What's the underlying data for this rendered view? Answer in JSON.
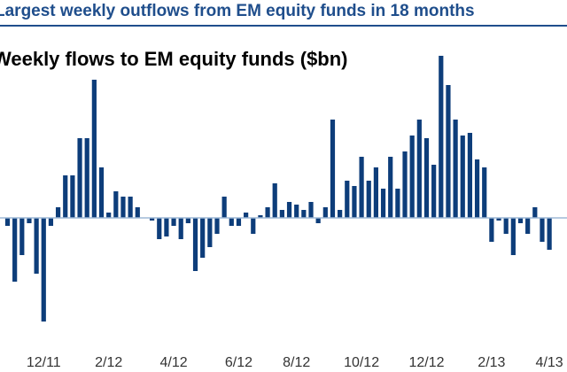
{
  "header": {
    "title": "Largest weekly outflows from EM equity funds in 18 months",
    "subtitle": "Weekly flows to EM equity funds ($bn)"
  },
  "chart_data": {
    "type": "bar",
    "title": "Weekly flows to EM equity funds ($bn)",
    "xlabel": "",
    "ylabel": "",
    "ylim": [
      -2.0,
      3.0
    ],
    "grid": false,
    "legend": "none",
    "bar_color": "#0d3d7a",
    "zero_line_color": "#9db8d6",
    "x_tick_labels": [
      "12/11",
      "2/12",
      "4/12",
      "6/12",
      "8/12",
      "10/12",
      "12/12",
      "2/13",
      "4/13"
    ],
    "tick_week_index": [
      5,
      14,
      23,
      32,
      40,
      49,
      58,
      67,
      75
    ],
    "values": [
      -0.15,
      -1.2,
      -0.7,
      -0.1,
      -1.05,
      -1.95,
      -0.15,
      0.2,
      0.8,
      0.8,
      1.5,
      1.5,
      2.6,
      0.95,
      0.1,
      0.5,
      0.4,
      0.4,
      0.2,
      0.0,
      -0.05,
      -0.4,
      -0.35,
      -0.15,
      -0.4,
      -0.1,
      -1.0,
      -0.75,
      -0.55,
      -0.3,
      0.4,
      -0.15,
      -0.15,
      0.1,
      -0.3,
      0.05,
      0.2,
      0.65,
      0.15,
      0.3,
      0.25,
      0.15,
      0.3,
      -0.1,
      0.2,
      1.85,
      0.15,
      0.7,
      0.6,
      1.15,
      0.7,
      0.95,
      0.55,
      1.15,
      0.55,
      1.25,
      1.55,
      1.85,
      1.5,
      1.0,
      3.05,
      2.5,
      1.85,
      1.55,
      1.6,
      1.1,
      0.95,
      -0.45,
      -0.05,
      -0.3,
      -0.7,
      -0.1,
      -0.3,
      0.2,
      -0.45,
      -0.6
    ]
  }
}
